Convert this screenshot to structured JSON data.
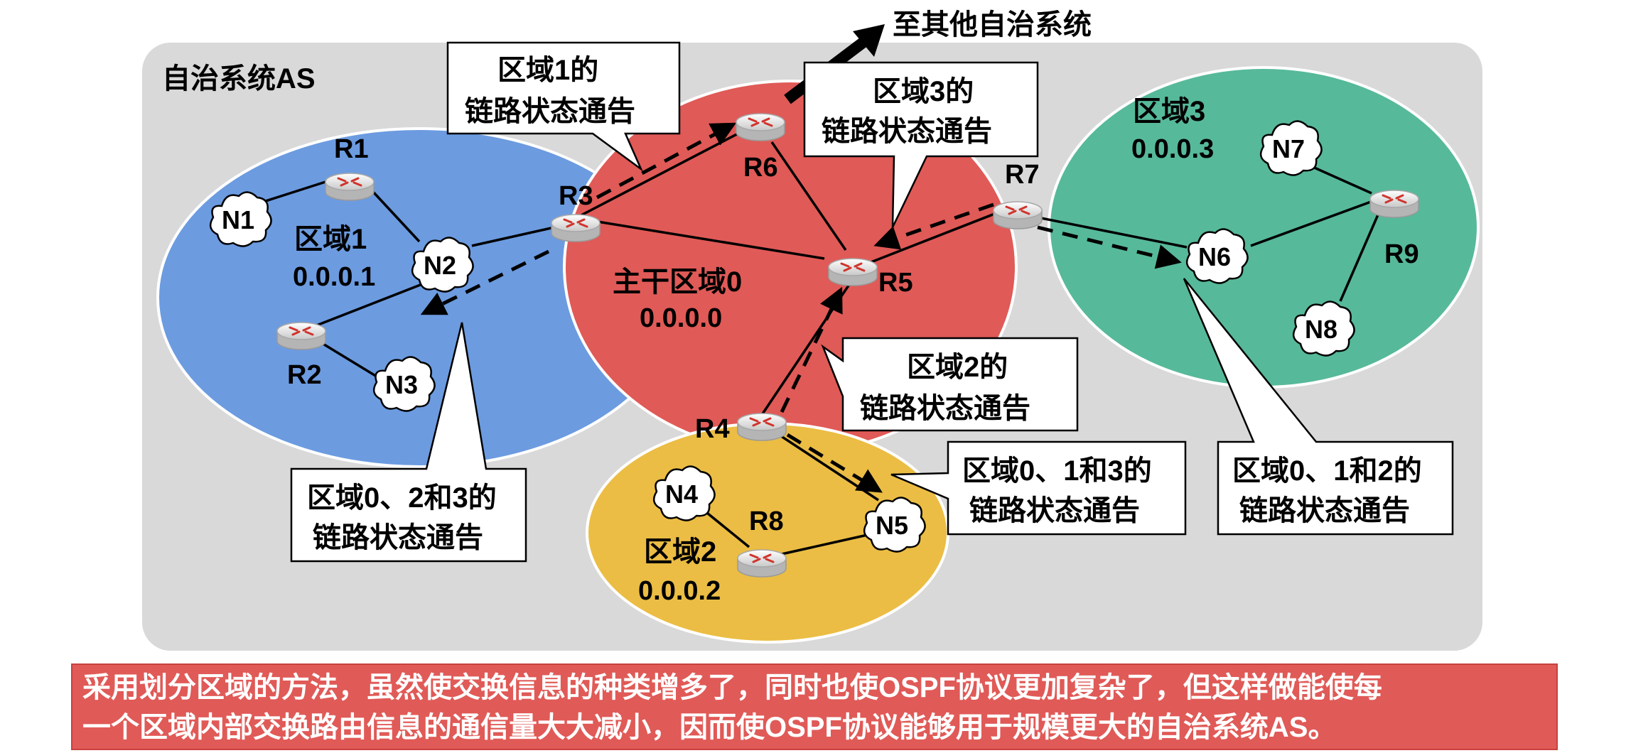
{
  "top_label": "至其他自治系统",
  "as_label": "自治系统AS",
  "areas": {
    "area1": {
      "name": "区域1",
      "id": "0.0.0.1",
      "color": "#6c9be0"
    },
    "area0": {
      "name": "主干区域0",
      "id": "0.0.0.0",
      "color": "#e05a57"
    },
    "area2": {
      "name": "区域2",
      "id": "0.0.0.2",
      "color": "#ebbd44"
    },
    "area3": {
      "name": "区域3",
      "id": "0.0.0.3",
      "color": "#56b99a"
    }
  },
  "routers": {
    "r1": "R1",
    "r2": "R2",
    "r3": "R3",
    "r4": "R4",
    "r5": "R5",
    "r6": "R6",
    "r7": "R7",
    "r8": "R8",
    "r9": "R9"
  },
  "networks": {
    "n1": "N1",
    "n2": "N2",
    "n3": "N3",
    "n4": "N4",
    "n5": "N5",
    "n6": "N6",
    "n7": "N7",
    "n8": "N8"
  },
  "callouts": {
    "area1_lsa": {
      "line1": "区域1的",
      "line2": "链路状态通告"
    },
    "area3_lsa": {
      "line1": "区域3的",
      "line2": "链路状态通告"
    },
    "area2_lsa": {
      "line1": "区域2的",
      "line2": "链路状态通告"
    },
    "to_area1": {
      "line1": "区域0、2和3的",
      "line2": "链路状态通告"
    },
    "to_area2": {
      "line1": "区域0、1和3的",
      "line2": "链路状态通告"
    },
    "to_area3": {
      "line1": "区域0、1和2的",
      "line2": "链路状态通告"
    }
  },
  "footer": {
    "line1": "采用划分区域的方法，虽然使交换信息的种类增多了，同时也使OSPF协议更加复杂了，但这样做能使每",
    "line2": "一个区域内部交换路由信息的通信量大大减小，因而使OSPF协议能够用于规模更大的自治系统AS。"
  }
}
